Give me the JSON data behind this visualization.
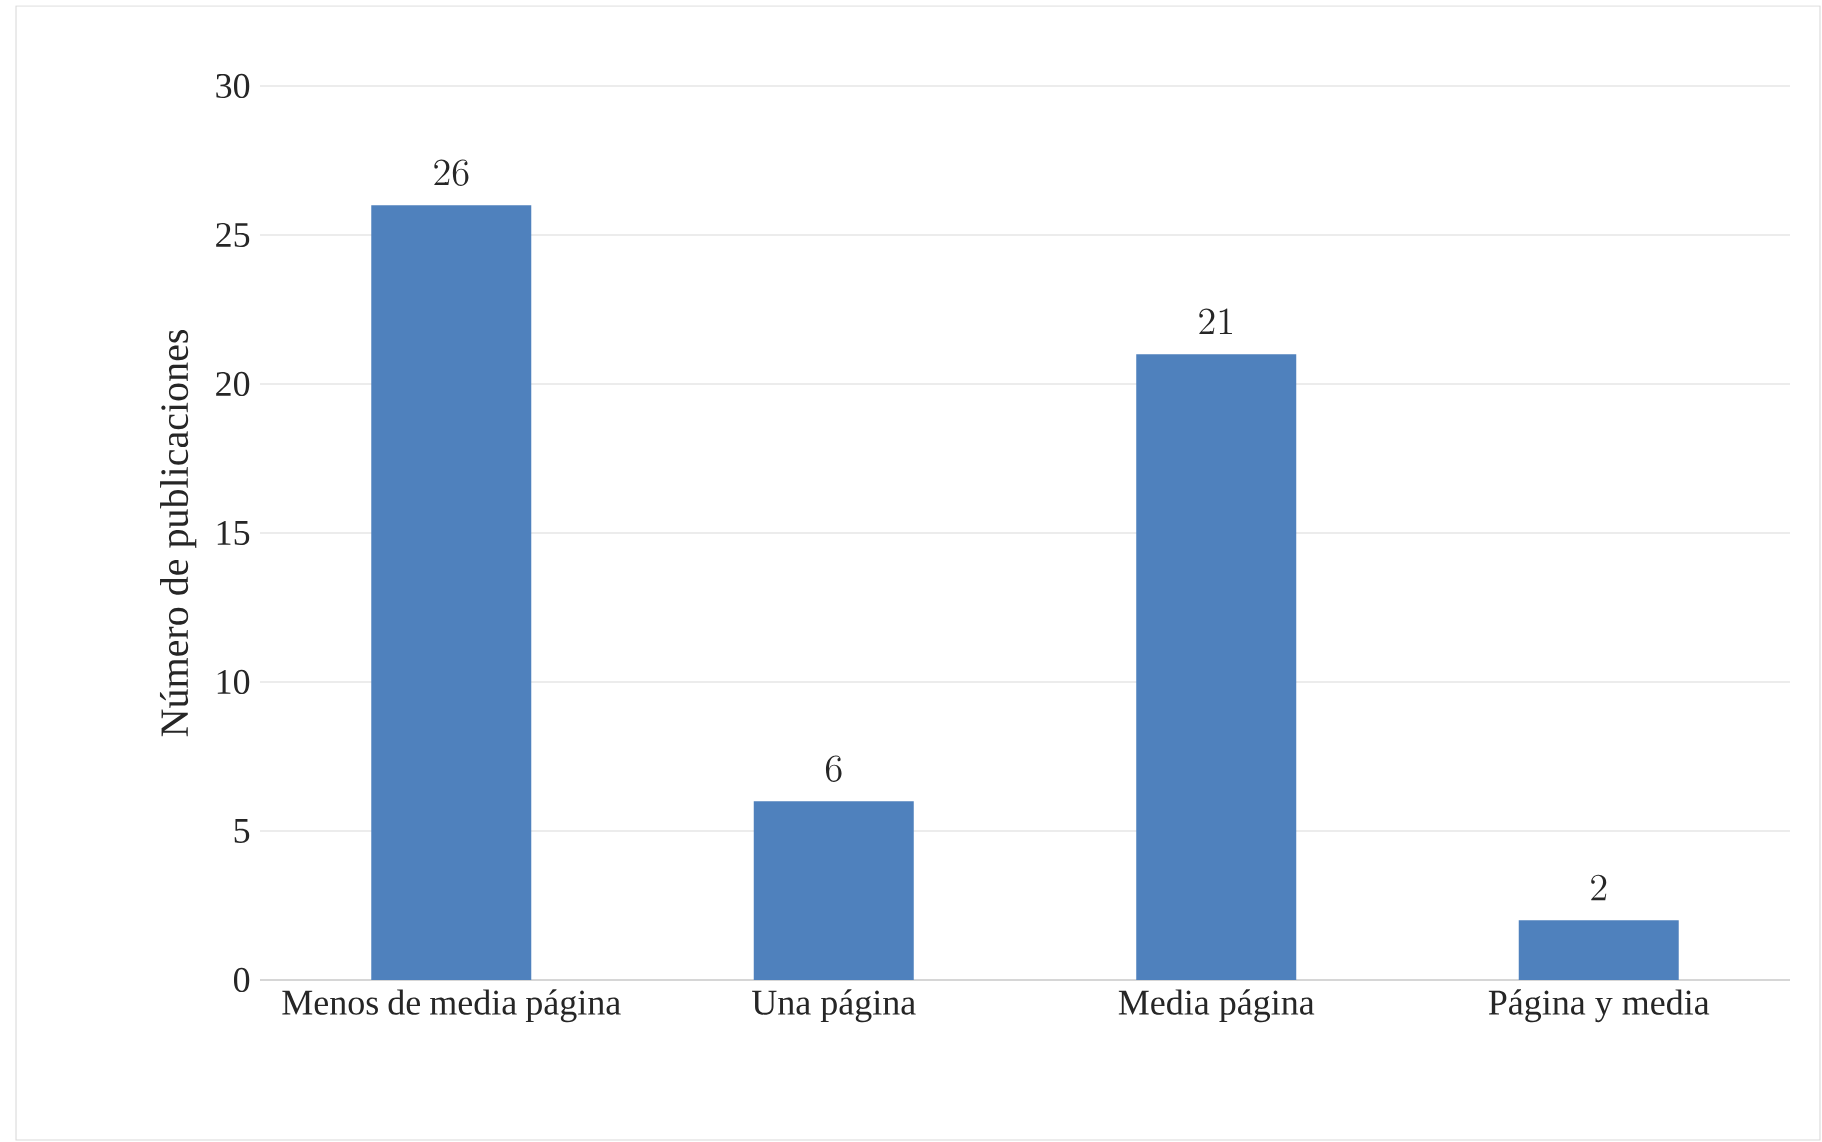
{
  "chart_data": {
    "type": "bar",
    "ylabel": "Número de publicaciones",
    "categories": [
      "Menos de media página",
      "Una página",
      "Media página",
      "Página y media"
    ],
    "values": [
      26,
      6,
      21,
      2
    ],
    "color": "#4f81bd",
    "ylim": [
      0,
      30
    ],
    "yticks": [
      0,
      5,
      10,
      15,
      20,
      25,
      30
    ],
    "grid": "y",
    "data_labels": true
  }
}
